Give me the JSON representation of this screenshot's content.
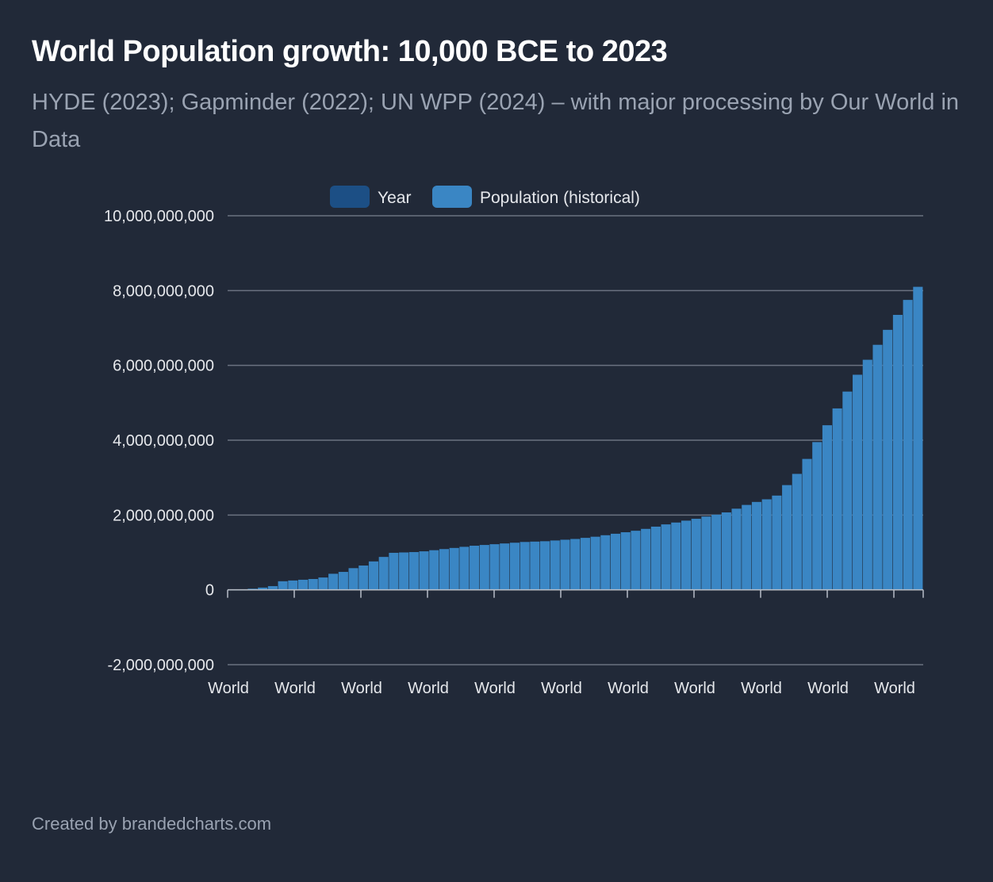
{
  "header": {
    "title": "World Population growth: 10,000 BCE to 2023",
    "subtitle": "HYDE (2023); Gapminder (2022); UN WPP (2024) – with major processing by Our World in Data"
  },
  "footer": {
    "credit": "Created by brandedcharts.com"
  },
  "colors": {
    "background": "#212938",
    "year_series": "#1c4f85",
    "population_series": "#3a86c4",
    "grid": "#6b7280",
    "text": "#e6e8ec"
  },
  "chart_data": {
    "type": "bar",
    "title": "World Population growth: 10,000 BCE to 2023",
    "xlabel": "",
    "ylabel": "",
    "ylim": [
      -2000000000,
      10000000000
    ],
    "yticks": [
      10000000000,
      8000000000,
      6000000000,
      4000000000,
      2000000000,
      0,
      -2000000000
    ],
    "ytick_labels": [
      "10,000,000,000",
      "8,000,000,000",
      "6,000,000,000",
      "4,000,000,000",
      "2,000,000,000",
      "0",
      "-2,000,000,000"
    ],
    "x_tick_labels": [
      "World",
      "World",
      "World",
      "World",
      "World",
      "World",
      "World",
      "World",
      "World",
      "World",
      "World"
    ],
    "x_category": "World",
    "grid": true,
    "legend": {
      "placement": "top-center",
      "entries": [
        "Year",
        "Population (historical)"
      ]
    },
    "series": [
      {
        "name": "Year",
        "color": "#1c4f85",
        "values": []
      },
      {
        "name": "Population (historical)",
        "color": "#3a86c4",
        "values": [
          4000000,
          10000000,
          30000000,
          60000000,
          100000000,
          230000000,
          250000000,
          270000000,
          290000000,
          330000000,
          430000000,
          480000000,
          580000000,
          650000000,
          760000000,
          880000000,
          990000000,
          1000000000,
          1010000000,
          1030000000,
          1060000000,
          1090000000,
          1120000000,
          1150000000,
          1180000000,
          1200000000,
          1220000000,
          1240000000,
          1260000000,
          1280000000,
          1290000000,
          1300000000,
          1320000000,
          1340000000,
          1360000000,
          1390000000,
          1420000000,
          1460000000,
          1500000000,
          1540000000,
          1580000000,
          1630000000,
          1690000000,
          1750000000,
          1800000000,
          1850000000,
          1900000000,
          1960000000,
          2010000000,
          2070000000,
          2170000000,
          2270000000,
          2350000000,
          2420000000,
          2520000000,
          2800000000,
          3100000000,
          3500000000,
          3950000000,
          4400000000,
          4850000000,
          5300000000,
          5750000000,
          6150000000,
          6550000000,
          6950000000,
          7350000000,
          7750000000,
          8100000000
        ]
      }
    ]
  }
}
